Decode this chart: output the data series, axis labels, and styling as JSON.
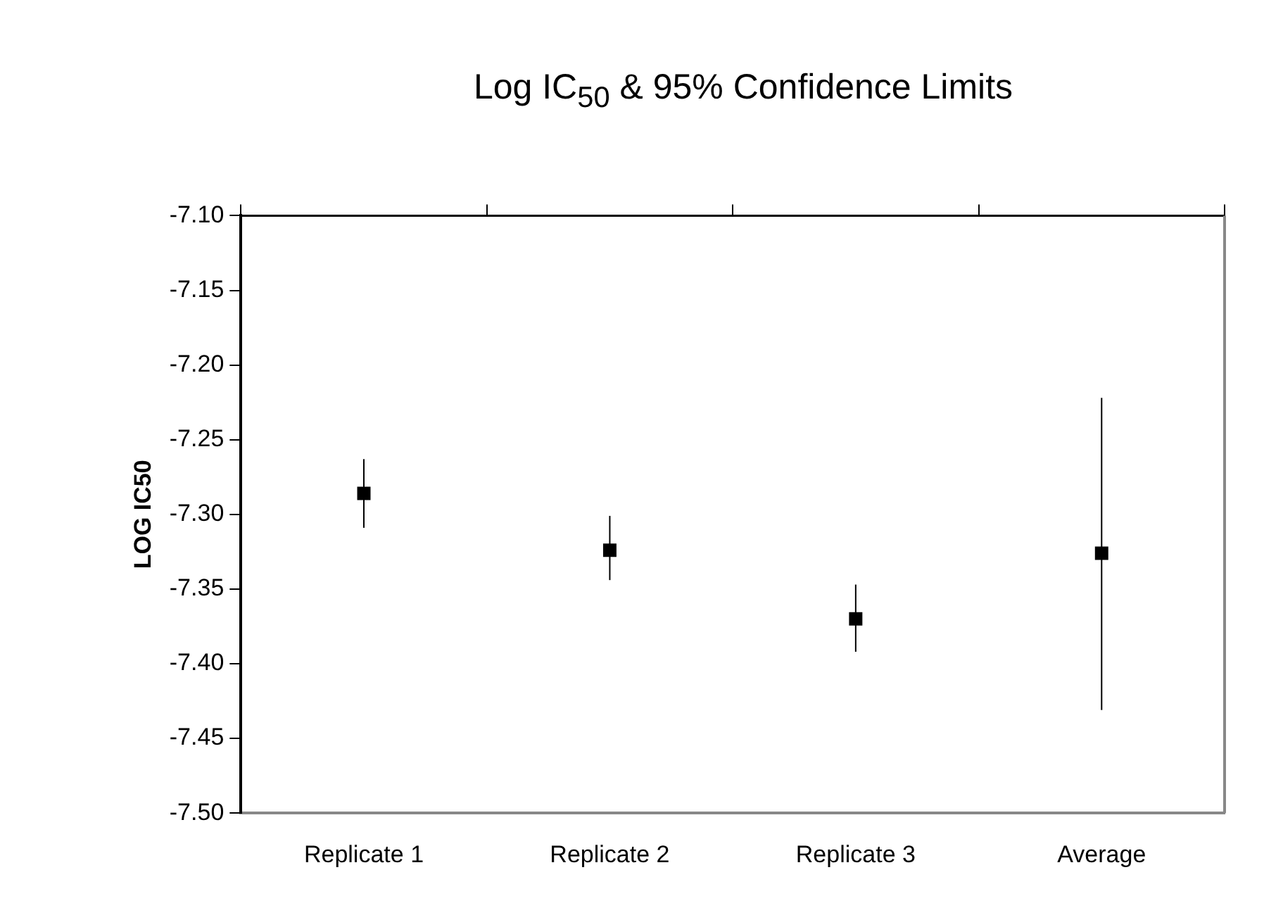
{
  "chart_data": {
    "type": "scatter",
    "title": "Log IC$_{50}$ & 95% Confidence Limits",
    "ylabel": "LOG IC50",
    "categories": [
      "Replicate 1",
      "Replicate 2",
      "Replicate 3",
      "Average"
    ],
    "series": [
      {
        "color": "#000000",
        "values": [
          -7.286,
          -7.324,
          -7.37,
          -7.326
        ],
        "errors": [
          [
            -7.309,
            -7.263
          ],
          [
            -7.344,
            -7.301
          ],
          [
            -7.392,
            -7.347
          ],
          [
            -7.431,
            -7.222
          ]
        ]
      }
    ],
    "ylim": [
      -7.5,
      -7.1
    ],
    "yticks": [
      {
        "value": -7.1,
        "label": "-7.10"
      },
      {
        "value": -7.15,
        "label": "-7.15"
      },
      {
        "value": -7.2,
        "label": "-7.20"
      },
      {
        "value": -7.25,
        "label": "-7.25"
      },
      {
        "value": -7.3,
        "label": "-7.30"
      },
      {
        "value": -7.35,
        "label": "-7.35"
      },
      {
        "value": -7.4,
        "label": "-7.40"
      },
      {
        "value": -7.45,
        "label": "-7.45"
      },
      {
        "value": -7.5,
        "label": "-7.50"
      }
    ],
    "marker": "square",
    "grid": false,
    "legend": false
  }
}
